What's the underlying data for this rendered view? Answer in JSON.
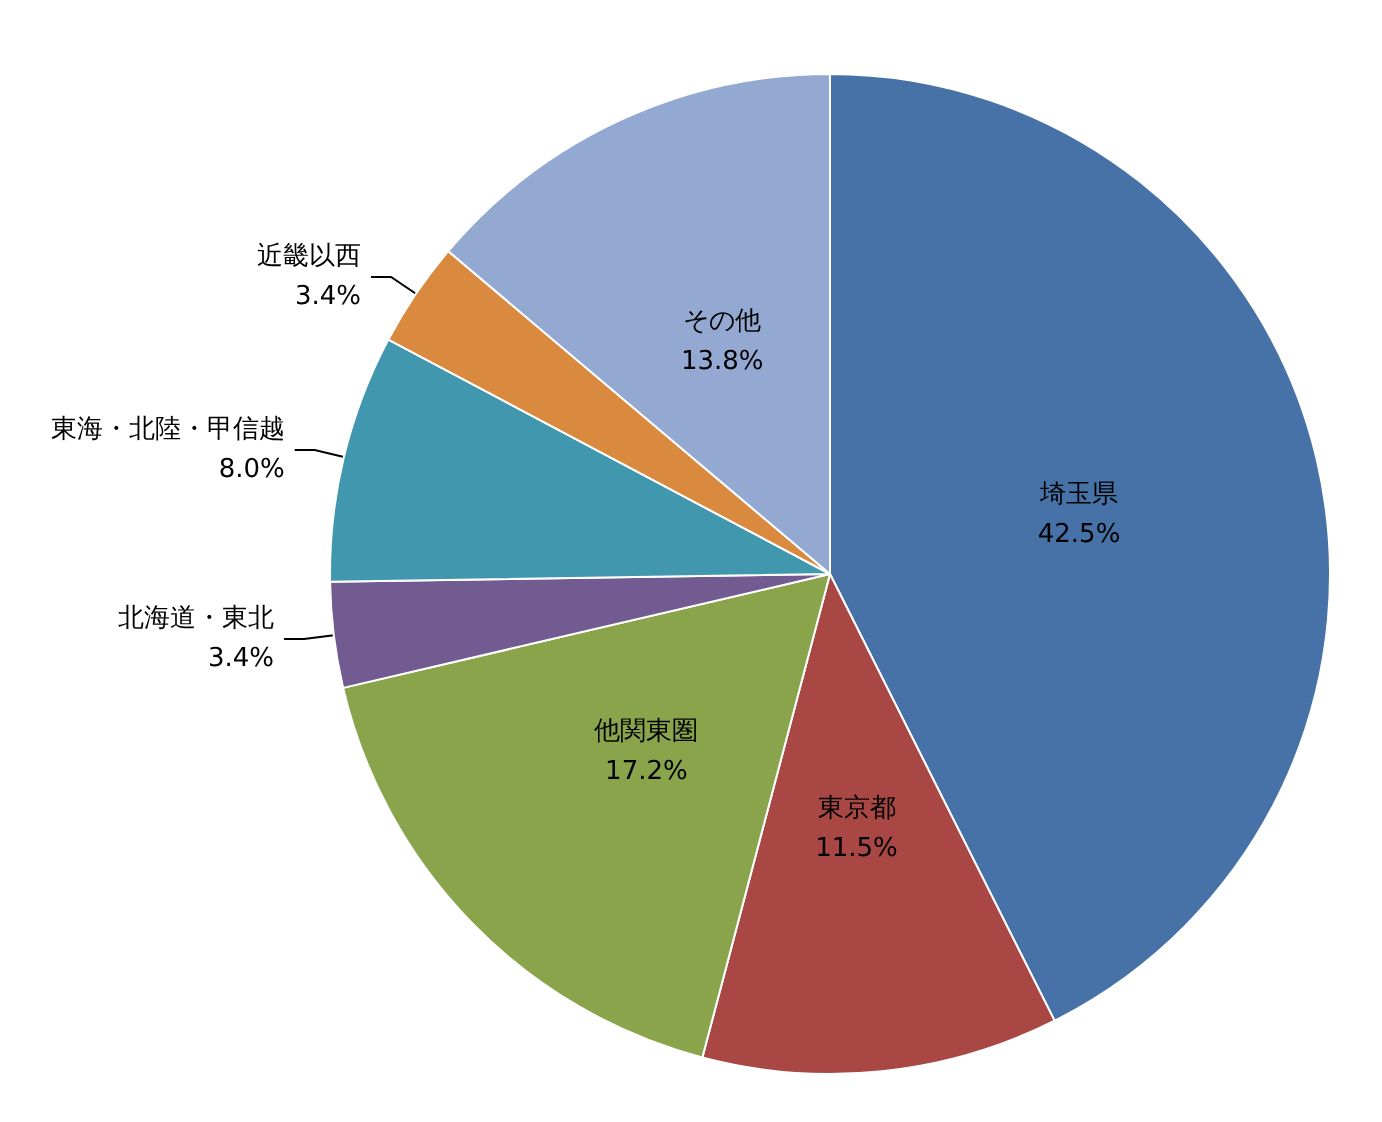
{
  "chart_data": {
    "type": "pie",
    "categories": [
      "埼玉県",
      "東京都",
      "他関東圏",
      "北海道・東北",
      "東海・北陸・甲信越",
      "近畿以西",
      "その他"
    ],
    "values": [
      42.5,
      11.5,
      17.2,
      3.4,
      8.0,
      3.4,
      13.8
    ],
    "value_labels": [
      "42.5%",
      "11.5%",
      "17.2%",
      "3.4%",
      "8.0%",
      "3.4%",
      "13.8%"
    ],
    "colors": [
      "#4672a8",
      "#a84744",
      "#89a44b",
      "#725b91",
      "#4197ae",
      "#d98a3e",
      "#94a9d2"
    ],
    "legend": false
  }
}
